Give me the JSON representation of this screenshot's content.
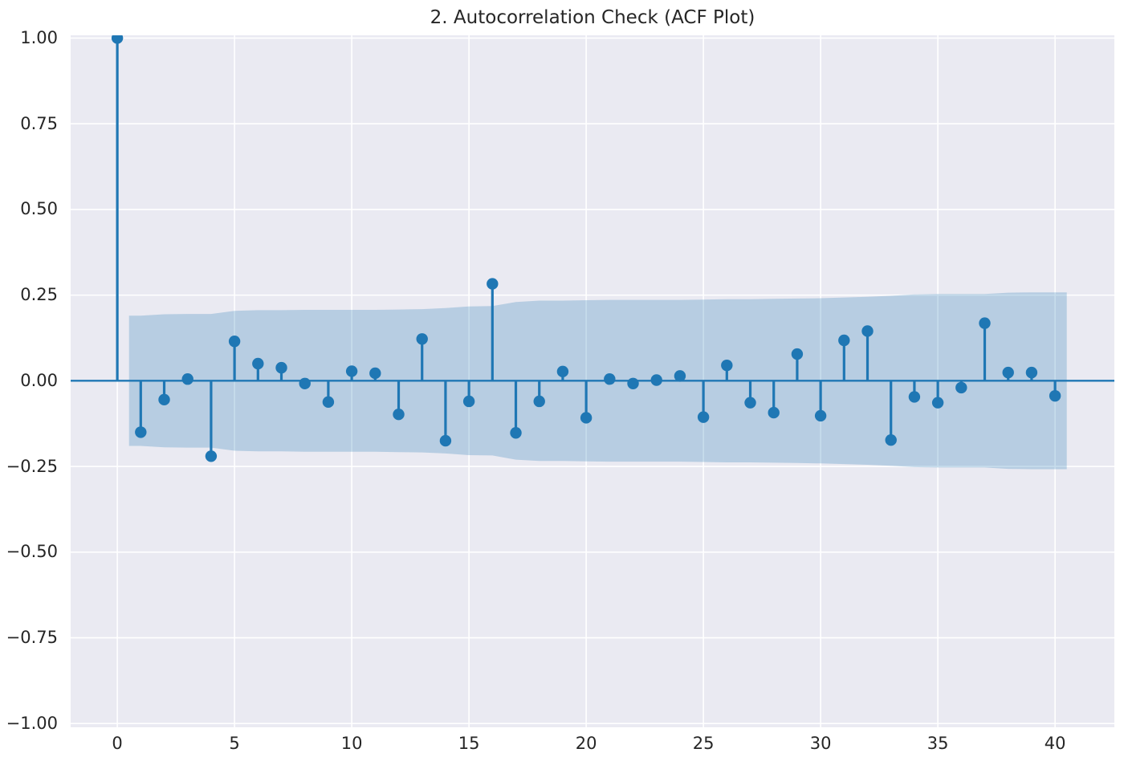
{
  "chart_data": {
    "type": "stem",
    "subtype": "acf-correlogram",
    "title": "2. Autocorrelation Check (ACF Plot)",
    "xlabel": "",
    "ylabel": "",
    "grid": true,
    "legend": "none",
    "xlim": [
      -1.99,
      42.53
    ],
    "ylim": [
      -1.011,
      1.008
    ],
    "x_tick_values": [
      0,
      5,
      10,
      15,
      20,
      25,
      30,
      35,
      40
    ],
    "x_tick_labels": [
      "0",
      "5",
      "10",
      "15",
      "20",
      "25",
      "30",
      "35",
      "40"
    ],
    "y_tick_values": [
      1.0,
      0.75,
      0.5,
      0.25,
      0.0,
      -0.25,
      -0.5,
      -0.75,
      -1.0
    ],
    "y_tick_labels": [
      "1.00",
      "0.75",
      "0.50",
      "0.25",
      "0.00",
      "−0.25",
      "−0.50",
      "−0.75",
      "−1.00"
    ],
    "lags": [
      0,
      1,
      2,
      3,
      4,
      5,
      6,
      7,
      8,
      9,
      10,
      11,
      12,
      13,
      14,
      15,
      16,
      17,
      18,
      19,
      20,
      21,
      22,
      23,
      24,
      25,
      26,
      27,
      28,
      29,
      30,
      31,
      32,
      33,
      34,
      35,
      36,
      37,
      38,
      39,
      40
    ],
    "acf_values": [
      1.0,
      -0.15,
      -0.055,
      0.005,
      -0.22,
      0.115,
      0.05,
      0.038,
      -0.008,
      -0.062,
      0.028,
      0.022,
      -0.098,
      0.122,
      -0.175,
      -0.06,
      0.283,
      -0.152,
      -0.06,
      0.027,
      -0.108,
      0.005,
      -0.008,
      0.002,
      0.014,
      -0.106,
      0.045,
      -0.064,
      -0.093,
      0.078,
      -0.102,
      0.118,
      0.145,
      -0.173,
      -0.047,
      -0.064,
      -0.02,
      0.168,
      0.024,
      0.024,
      -0.044
    ],
    "confidence_band": {
      "symmetric_around_zero": true,
      "lags": [
        1,
        2,
        3,
        4,
        5,
        6,
        7,
        8,
        9,
        10,
        11,
        12,
        13,
        14,
        15,
        16,
        17,
        18,
        19,
        20,
        21,
        22,
        23,
        24,
        25,
        26,
        27,
        28,
        29,
        30,
        31,
        32,
        33,
        34,
        35,
        36,
        37,
        38,
        39,
        40
      ],
      "upper": [
        0.19,
        0.194,
        0.195,
        0.195,
        0.204,
        0.206,
        0.206,
        0.207,
        0.207,
        0.207,
        0.207,
        0.208,
        0.209,
        0.212,
        0.217,
        0.218,
        0.23,
        0.234,
        0.234,
        0.235,
        0.236,
        0.236,
        0.236,
        0.236,
        0.237,
        0.238,
        0.238,
        0.239,
        0.24,
        0.241,
        0.243,
        0.245,
        0.248,
        0.252,
        0.253,
        0.253,
        0.253,
        0.257,
        0.258,
        0.258
      ],
      "lower": [
        -0.19,
        -0.194,
        -0.195,
        -0.195,
        -0.204,
        -0.206,
        -0.206,
        -0.207,
        -0.207,
        -0.207,
        -0.207,
        -0.208,
        -0.209,
        -0.212,
        -0.217,
        -0.218,
        -0.23,
        -0.234,
        -0.234,
        -0.235,
        -0.236,
        -0.236,
        -0.236,
        -0.236,
        -0.237,
        -0.238,
        -0.238,
        -0.239,
        -0.24,
        -0.241,
        -0.243,
        -0.245,
        -0.248,
        -0.252,
        -0.253,
        -0.253,
        -0.253,
        -0.257,
        -0.258,
        -0.258
      ],
      "x_extension": 0.5
    },
    "colors": {
      "stem_line": "#1f77b4",
      "marker": "#1f77b4",
      "zero_line": "#1f77b4",
      "band_fill": "#1f77b4",
      "band_opacity": 0.25,
      "axes_background": "#eaeaf2",
      "grid_line": "#ffffff",
      "text": "#262626",
      "figure_background": "#ffffff"
    }
  }
}
